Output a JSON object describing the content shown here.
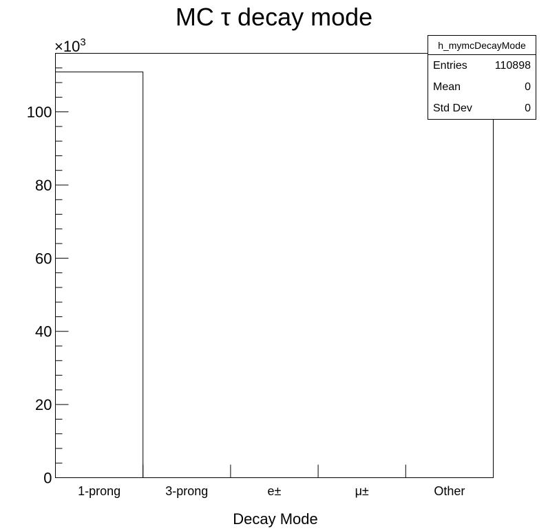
{
  "chart_data": {
    "type": "bar",
    "title": "MC τ decay mode",
    "xlabel": "Decay Mode",
    "ylabel": "",
    "y_exponent_label": "×10",
    "y_exponent_power": "3",
    "y_display_scale": 1000,
    "ylim": [
      0,
      116000
    ],
    "yticks": [
      0,
      20000,
      40000,
      60000,
      80000,
      100000
    ],
    "ytick_labels": [
      "0",
      "20",
      "40",
      "60",
      "80",
      "100"
    ],
    "categories": [
      "1-prong",
      "3-prong",
      "e±",
      "μ±",
      "Other"
    ],
    "values": [
      110898,
      0,
      0,
      0,
      0
    ],
    "histogram_style": "step",
    "grid": false
  },
  "stats_box": {
    "name": "h_mymcDecayMode",
    "rows": [
      {
        "label": "Entries",
        "value": "110898"
      },
      {
        "label": "Mean",
        "value": "0"
      },
      {
        "label": "Std Dev",
        "value": "0"
      }
    ]
  }
}
